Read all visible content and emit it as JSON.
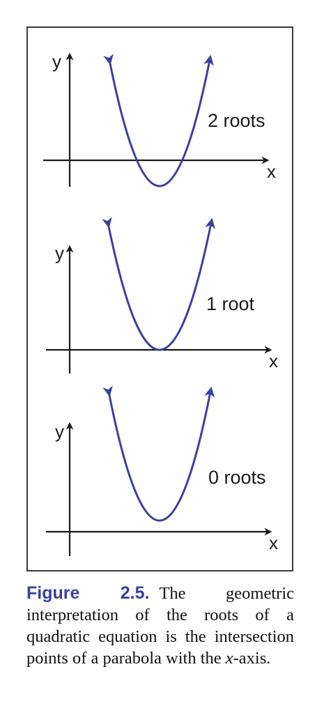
{
  "panels": [
    {
      "axis_y": "y",
      "axis_x": "x",
      "label": "2 roots"
    },
    {
      "axis_y": "y",
      "axis_x": "x",
      "label": "1 root"
    },
    {
      "axis_y": "y",
      "axis_x": "x",
      "label": "0 roots"
    }
  ],
  "caption": {
    "figure_label": "Figure 2.5.",
    "text_before": "The geometric interpretation of the roots of a quadratic equation is the intersection points of a parabola with the ",
    "x_var": "x",
    "text_after": "-axis."
  },
  "colors": {
    "curve": "#3b3fa0",
    "axes": "#1a1a1a",
    "frame": "#3a3a3a"
  }
}
